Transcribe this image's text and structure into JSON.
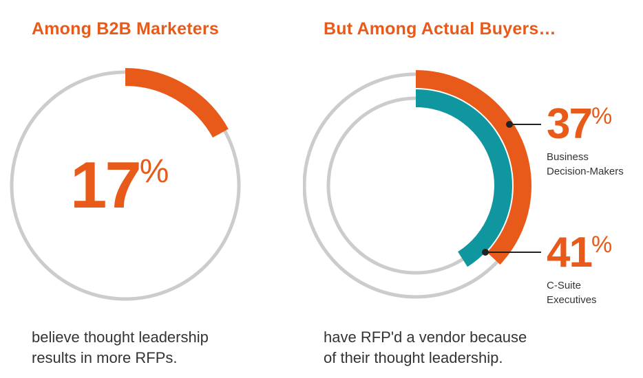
{
  "colors": {
    "accent": "#e85a1a",
    "teal": "#0f969e",
    "track": "#cccccc",
    "text": "#333333"
  },
  "left": {
    "title": "Among B2B Marketers",
    "pct_number": "17",
    "pct_symbol": "%",
    "caption_line1": "believe thought leadership",
    "caption_line2": "results in more RFPs."
  },
  "right": {
    "title": "But Among Actual Buyers…",
    "caption_line1": "have RFP'd a vendor because",
    "caption_line2": "of their thought leadership.",
    "callouts": [
      {
        "pct_number": "37",
        "pct_symbol": "%",
        "label_line1": "Business",
        "label_line2": "Decision-Makers"
      },
      {
        "pct_number": "41",
        "pct_symbol": "%",
        "label_line1": "C-Suite",
        "label_line2": "Executives"
      }
    ]
  },
  "chart_data": [
    {
      "type": "pie",
      "title": "Among B2B Marketers",
      "series": [
        {
          "name": "",
          "values": [
            17
          ]
        }
      ],
      "unit": "%"
    },
    {
      "type": "pie",
      "title": "But Among Actual Buyers…",
      "series": [
        {
          "name": "Business Decision-Makers",
          "values": [
            37
          ]
        },
        {
          "name": "C-Suite Executives",
          "values": [
            41
          ]
        }
      ],
      "unit": "%"
    }
  ]
}
